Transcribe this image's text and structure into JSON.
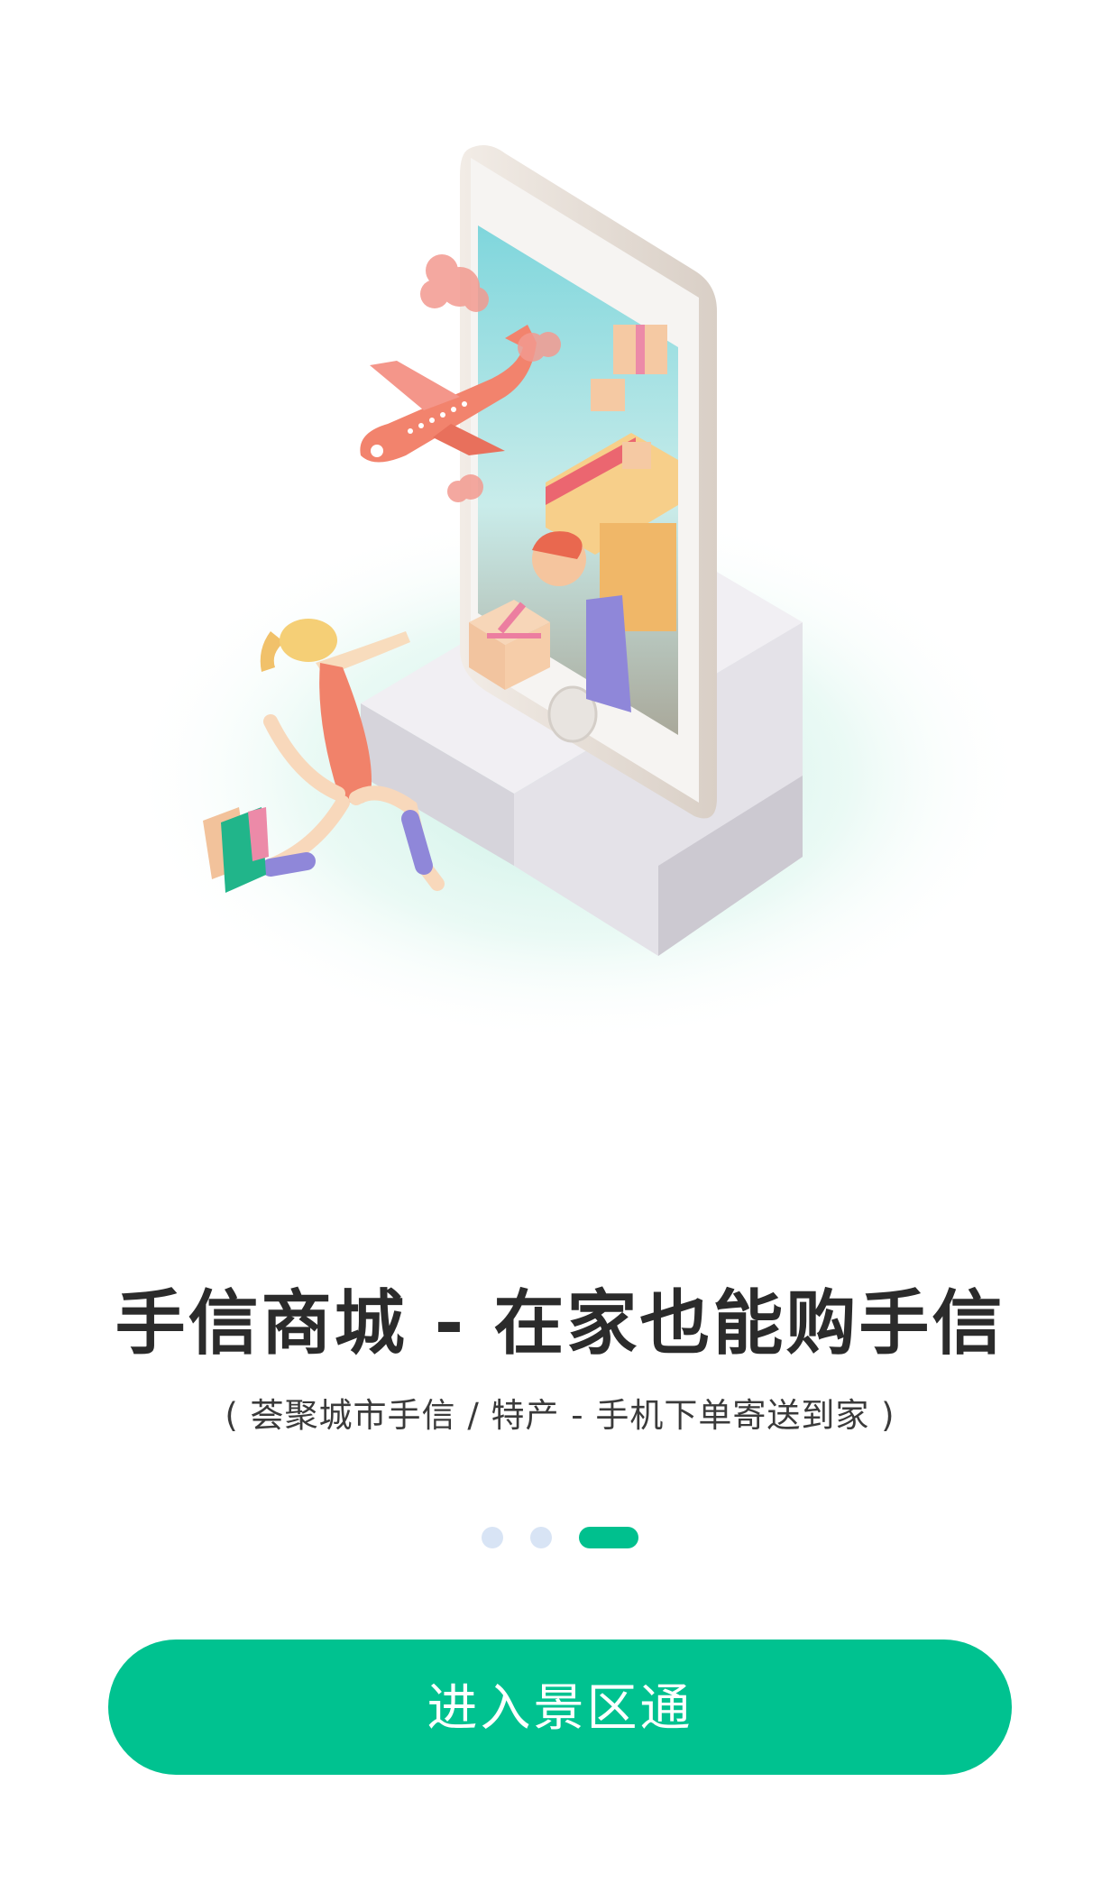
{
  "onboarding": {
    "title": "手信商城 - 在家也能购手信",
    "subtitle": "( 荟聚城市手信 / 特产 - 手机下单寄送到家 )",
    "pagination": {
      "total": 3,
      "active_index": 2
    },
    "enter_button_label": "进入景区通"
  },
  "colors": {
    "accent": "#00c290",
    "dot_inactive": "#d8e4f5",
    "title_text": "#2b2b2b"
  }
}
